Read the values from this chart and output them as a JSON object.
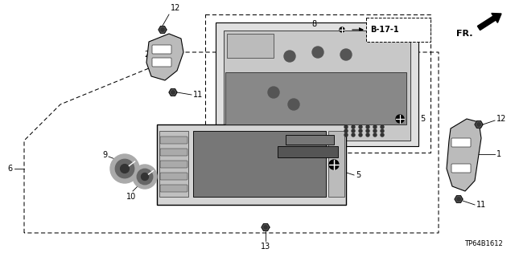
{
  "bg_color": "#ffffff",
  "line_color": "#000000",
  "fig_width": 6.4,
  "fig_height": 3.2,
  "dpi": 100,
  "part_code": "TP64B1612",
  "b17_text": "B-17-1",
  "fr_text": "FR."
}
